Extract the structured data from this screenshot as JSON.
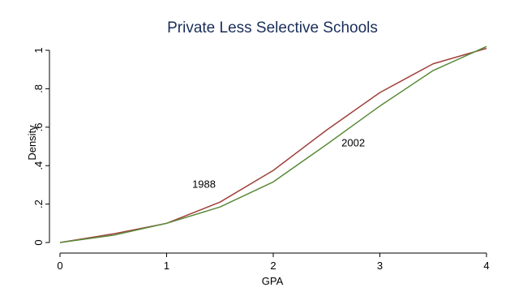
{
  "chart_data": {
    "type": "line",
    "title": "Private Less Selective Schools",
    "xlabel": "GPA",
    "ylabel": "Density",
    "xlim": [
      0,
      4
    ],
    "ylim": [
      0,
      1
    ],
    "x_ticks": [
      0,
      1,
      2,
      3,
      4
    ],
    "x_tick_labels": [
      "0",
      "1",
      "2",
      "3",
      "4"
    ],
    "y_ticks": [
      0,
      0.2,
      0.4,
      0.6,
      0.8,
      1
    ],
    "y_tick_labels": [
      "0",
      ".2",
      ".4",
      ".6",
      ".8",
      "1"
    ],
    "grid": false,
    "legend": "none",
    "series": [
      {
        "name": "1988",
        "color": "#a0403a",
        "x": [
          0,
          0.5,
          1,
          1.5,
          2,
          2.5,
          3,
          3.5,
          4
        ],
        "y": [
          0,
          0.045,
          0.1,
          0.21,
          0.375,
          0.585,
          0.78,
          0.93,
          1.01
        ]
      },
      {
        "name": "2002",
        "color": "#5a8a3a",
        "x": [
          0,
          0.5,
          1,
          1.5,
          2,
          2.5,
          3,
          3.5,
          4
        ],
        "y": [
          0,
          0.038,
          0.1,
          0.185,
          0.315,
          0.51,
          0.71,
          0.895,
          1.02
        ]
      }
    ]
  },
  "annotations": [
    {
      "text": "1988",
      "x": 1.35,
      "y": 0.285
    },
    {
      "text": "2002",
      "x": 2.75,
      "y": 0.5
    }
  ]
}
